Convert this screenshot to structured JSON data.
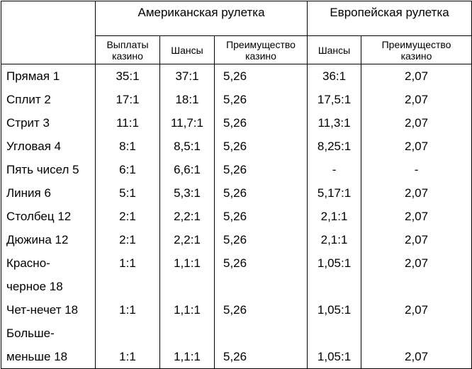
{
  "headers": {
    "american": "Американская рулетка",
    "european": "Европейская рулетка",
    "sub": {
      "payout": [
        "Выплаты",
        "казино"
      ],
      "odds": "Шансы",
      "edge": [
        "Преимущество",
        "казино"
      ],
      "eu_odds": "Шансы",
      "eu_edge": [
        "Преимущество",
        "казино"
      ]
    }
  },
  "rows": [
    {
      "bet": "Прямая 1",
      "payout": "35:1",
      "odds": "37:1",
      "edge": "5,26",
      "eu_odds": "36:1",
      "eu_edge": "2,07"
    },
    {
      "bet": "Сплит 2",
      "payout": "17:1",
      "odds": "18:1",
      "edge": "5,26",
      "eu_odds": "17,5:1",
      "eu_edge": "2,07"
    },
    {
      "bet": "Стрит 3",
      "payout": "11:1",
      "odds": "11,7:1",
      "edge": "5,26",
      "eu_odds": "11,3:1",
      "eu_edge": "2,07"
    },
    {
      "bet": "Угловая 4",
      "payout": "8:1",
      "odds": "8,5:1",
      "edge": "5,26",
      "eu_odds": "8,25:1",
      "eu_edge": "2,07"
    },
    {
      "bet": "Пять чисел 5",
      "payout": "6:1",
      "odds": "6,6:1",
      "edge": "5,26",
      "eu_odds": "-",
      "eu_edge": "-"
    },
    {
      "bet": "Линия 6",
      "payout": "5:1",
      "odds": "5,3:1",
      "edge": "5,26",
      "eu_odds": "5,17:1",
      "eu_edge": "2,07"
    },
    {
      "bet": "Столбец 12",
      "payout": "2:1",
      "odds": "2,2:1",
      "edge": "5,26",
      "eu_odds": "2,1:1",
      "eu_edge": "2,07"
    },
    {
      "bet": "Дюжина 12",
      "payout": "2:1",
      "odds": "2,2:1",
      "edge": "5,26",
      "eu_odds": "2,1:1",
      "eu_edge": "2,07"
    },
    {
      "bet": "Красно-",
      "payout": "1:1",
      "odds": "1,1:1",
      "edge": "5,26",
      "eu_odds": "1,05:1",
      "eu_edge": "2,07"
    },
    {
      "bet": "черное 18",
      "payout": "",
      "odds": "",
      "edge": "",
      "eu_odds": "",
      "eu_edge": ""
    },
    {
      "bet": "Чет-нечет 18",
      "payout": "1:1",
      "odds": "1,1:1",
      "edge": "5,26",
      "eu_odds": "1,05:1",
      "eu_edge": "2,07"
    },
    {
      "bet": "Больше-",
      "payout": "",
      "odds": "",
      "edge": "",
      "eu_odds": "",
      "eu_edge": ""
    },
    {
      "bet": "меньше 18",
      "payout": "1:1",
      "odds": "1,1:1",
      "edge": "5,26",
      "eu_odds": "1,05:1",
      "eu_edge": "2,07"
    }
  ]
}
